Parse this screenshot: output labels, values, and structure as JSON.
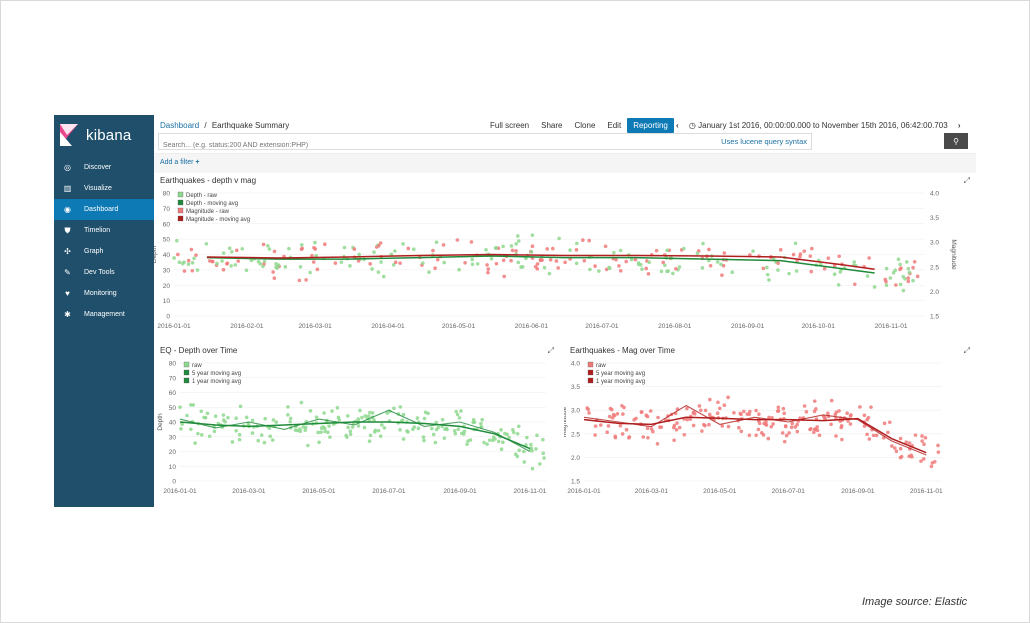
{
  "caption": "Image source: Elastic",
  "app": {
    "name": "kibana"
  },
  "sidebar": {
    "items": [
      {
        "label": "Discover",
        "icon": "compass-icon",
        "active": false
      },
      {
        "label": "Visualize",
        "icon": "bar-chart-icon",
        "active": false
      },
      {
        "label": "Dashboard",
        "icon": "dashboard-icon",
        "active": true
      },
      {
        "label": "Timelion",
        "icon": "shield-icon",
        "active": false
      },
      {
        "label": "Graph",
        "icon": "graph-icon",
        "active": false
      },
      {
        "label": "Dev Tools",
        "icon": "wrench-icon",
        "active": false
      },
      {
        "label": "Monitoring",
        "icon": "heartbeat-icon",
        "active": false
      },
      {
        "label": "Management",
        "icon": "gear-icon",
        "active": false
      }
    ]
  },
  "header": {
    "breadcrumb_root": "Dashboard",
    "breadcrumb_sep": "/",
    "breadcrumb_current": "Earthquake Summary",
    "actions": [
      "Full screen",
      "Share",
      "Clone",
      "Edit",
      "Reporting"
    ],
    "time_range": "January 1st 2016, 00:00:00.000 to November 15th 2016, 06:42:00.703",
    "search_placeholder": "Search... (e.g. status:200 AND extension:PHP)",
    "lucene_link": "Uses lucene query syntax",
    "add_filter": "Add a filter"
  },
  "colors": {
    "sidebar": "#1f4f6b",
    "accent": "#0e7ab5",
    "depth_raw": "#8fd88f",
    "depth_avg": "#1e8a3a",
    "mag_raw": "#f07a7a",
    "mag_avg": "#b01e1e"
  },
  "chart_data": [
    {
      "type": "scatter",
      "title": "Earthquakes - depth v mag",
      "ylabel": "Depth",
      "y2label": "Magnitude",
      "ylim": [
        0,
        80
      ],
      "y2lim": [
        1.5,
        4.0
      ],
      "yticks": [
        "0",
        "10",
        "20",
        "30",
        "40",
        "50",
        "60",
        "70",
        "80"
      ],
      "y2ticks": [
        "1.5",
        "2.0",
        "2.5",
        "3.0",
        "3.5",
        "4.0"
      ],
      "xticks": [
        "2016-01-01",
        "2016-02-01",
        "2016-03-01",
        "2016-04-01",
        "2016-05-01",
        "2016-06-01",
        "2016-07-01",
        "2016-08-01",
        "2016-09-01",
        "2016-10-01",
        "2016-11-01"
      ],
      "legend": [
        "Depth - raw",
        "Depth - moving avg",
        "Magnitude - raw",
        "Magnitude - moving avg"
      ],
      "legend_position": "top-left",
      "series": [
        {
          "name": "Depth - moving avg",
          "x": [
            "2016-01-15",
            "2016-02-15",
            "2016-03-15",
            "2016-04-15",
            "2016-05-15",
            "2016-06-15",
            "2016-07-15",
            "2016-08-15",
            "2016-09-15",
            "2016-10-10",
            "2016-10-25"
          ],
          "values": [
            38,
            37,
            37,
            38,
            39,
            38,
            38,
            37,
            36,
            31,
            28
          ]
        },
        {
          "name": "Magnitude - moving avg",
          "x": [
            "2016-01-15",
            "2016-02-15",
            "2016-03-15",
            "2016-04-15",
            "2016-05-15",
            "2016-06-15",
            "2016-07-15",
            "2016-08-15",
            "2016-09-15",
            "2016-10-10",
            "2016-10-25"
          ],
          "values": [
            2.7,
            2.68,
            2.7,
            2.73,
            2.75,
            2.73,
            2.73,
            2.72,
            2.7,
            2.55,
            2.45
          ]
        }
      ]
    },
    {
      "type": "line",
      "title": "EQ - Depth over Time",
      "ylabel": "Depth",
      "ylim": [
        0,
        80
      ],
      "yticks": [
        "0",
        "10",
        "20",
        "30",
        "40",
        "50",
        "60",
        "70",
        "80"
      ],
      "xticks": [
        "2016-01-01",
        "2016-03-01",
        "2016-05-01",
        "2016-07-01",
        "2016-09-01",
        "2016-11-01"
      ],
      "legend": [
        "raw",
        "5 year moving avg",
        "1 year moving avg"
      ],
      "legend_position": "top-left",
      "series": [
        {
          "name": "5 year moving avg",
          "x": [
            "2016-01-01",
            "2016-02-01",
            "2016-03-01",
            "2016-04-01",
            "2016-05-01",
            "2016-06-01",
            "2016-07-01",
            "2016-08-01",
            "2016-09-01",
            "2016-10-01",
            "2016-11-01"
          ],
          "values": [
            40,
            38,
            37,
            38,
            39,
            40,
            40,
            39,
            37,
            32,
            22
          ]
        },
        {
          "name": "1 year moving avg",
          "x": [
            "2016-01-01",
            "2016-02-01",
            "2016-03-01",
            "2016-04-01",
            "2016-05-01",
            "2016-06-01",
            "2016-07-01",
            "2016-08-01",
            "2016-09-01",
            "2016-10-01",
            "2016-11-01"
          ],
          "values": [
            42,
            36,
            40,
            35,
            42,
            38,
            48,
            37,
            40,
            33,
            20
          ]
        }
      ]
    },
    {
      "type": "line",
      "title": "Earthquakes - Mag over Time",
      "ylabel": "Magnitude",
      "ylim": [
        1.5,
        4.0
      ],
      "yticks": [
        "1.5",
        "2.0",
        "2.5",
        "3.0",
        "3.5",
        "4.0"
      ],
      "xticks": [
        "2016-01-01",
        "2016-03-01",
        "2016-05-01",
        "2016-07-01",
        "2016-09-01",
        "2016-11-01"
      ],
      "legend": [
        "raw",
        "5 year moving avg",
        "1 year moving avg"
      ],
      "legend_position": "top-left",
      "series": [
        {
          "name": "5 year moving avg",
          "x": [
            "2016-01-01",
            "2016-02-01",
            "2016-03-01",
            "2016-04-01",
            "2016-05-01",
            "2016-06-01",
            "2016-07-01",
            "2016-08-01",
            "2016-09-01",
            "2016-10-01",
            "2016-11-01"
          ],
          "values": [
            2.8,
            2.72,
            2.7,
            2.85,
            2.83,
            2.8,
            2.8,
            2.78,
            2.82,
            2.4,
            2.1
          ]
        },
        {
          "name": "1 year moving avg",
          "x": [
            "2016-01-01",
            "2016-02-01",
            "2016-03-01",
            "2016-04-01",
            "2016-05-01",
            "2016-06-01",
            "2016-07-01",
            "2016-08-01",
            "2016-09-01",
            "2016-10-01",
            "2016-11-01"
          ],
          "values": [
            2.85,
            2.75,
            2.65,
            3.1,
            2.7,
            2.85,
            2.75,
            2.9,
            2.8,
            2.35,
            2.05
          ]
        }
      ]
    }
  ]
}
